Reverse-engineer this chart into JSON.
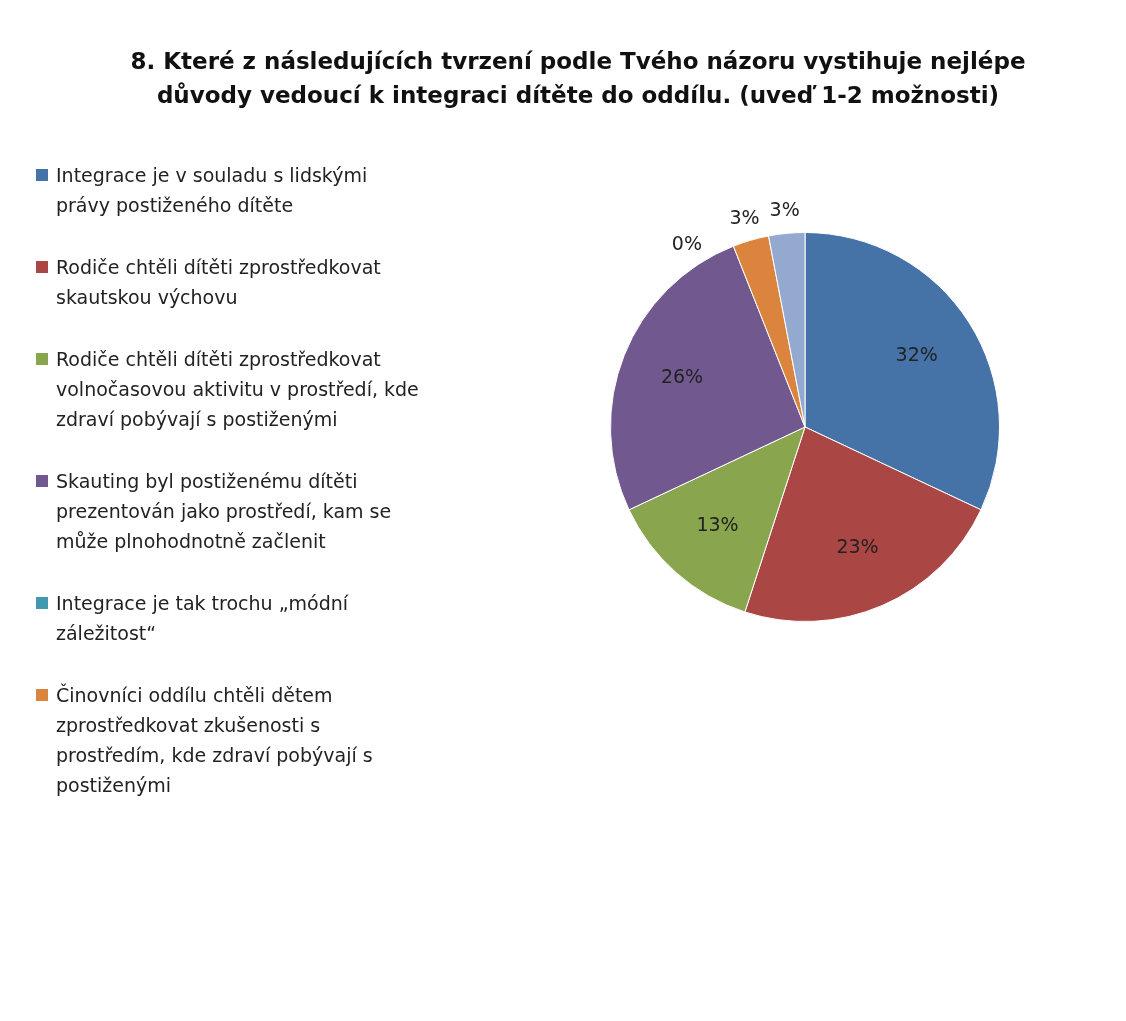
{
  "chart_data": {
    "type": "pie",
    "title": "8. Které z následujících tvrzení podle Tvého názoru vystihuje nejlépe důvody vedoucí k integraci dítěte do oddílu. (uveď 1-2 možnosti)",
    "categories": [
      "Integrace je v souladu s lidskými právy postiženého dítěte",
      "Rodiče chtěli dítěti zprostředkovat skautskou výchovu",
      "Rodiče chtěli dítěti zprostředkovat volnočasovou aktivitu v prostředí, kde zdraví pobývají s postiženými",
      "Skauting byl postiženému dítěti prezentován jako prostředí, kam se může plnohodnotně začlenit",
      "Integrace je tak trochu „módní záležitost“",
      "Činovníci oddílu chtěli dětem zprostředkovat zkušenosti s prostředím, kde zdraví pobývají s postiženými",
      null
    ],
    "values": [
      32,
      23,
      13,
      26,
      0,
      3,
      3
    ],
    "value_labels": [
      "32%",
      "23%",
      "13%",
      "26%",
      "0%",
      "3%",
      "3%"
    ],
    "colors": [
      "#4572a7",
      "#aa4643",
      "#89a54e",
      "#71588f",
      "#4198af",
      "#db843d",
      "#93a9cf"
    ],
    "legend": "left"
  }
}
